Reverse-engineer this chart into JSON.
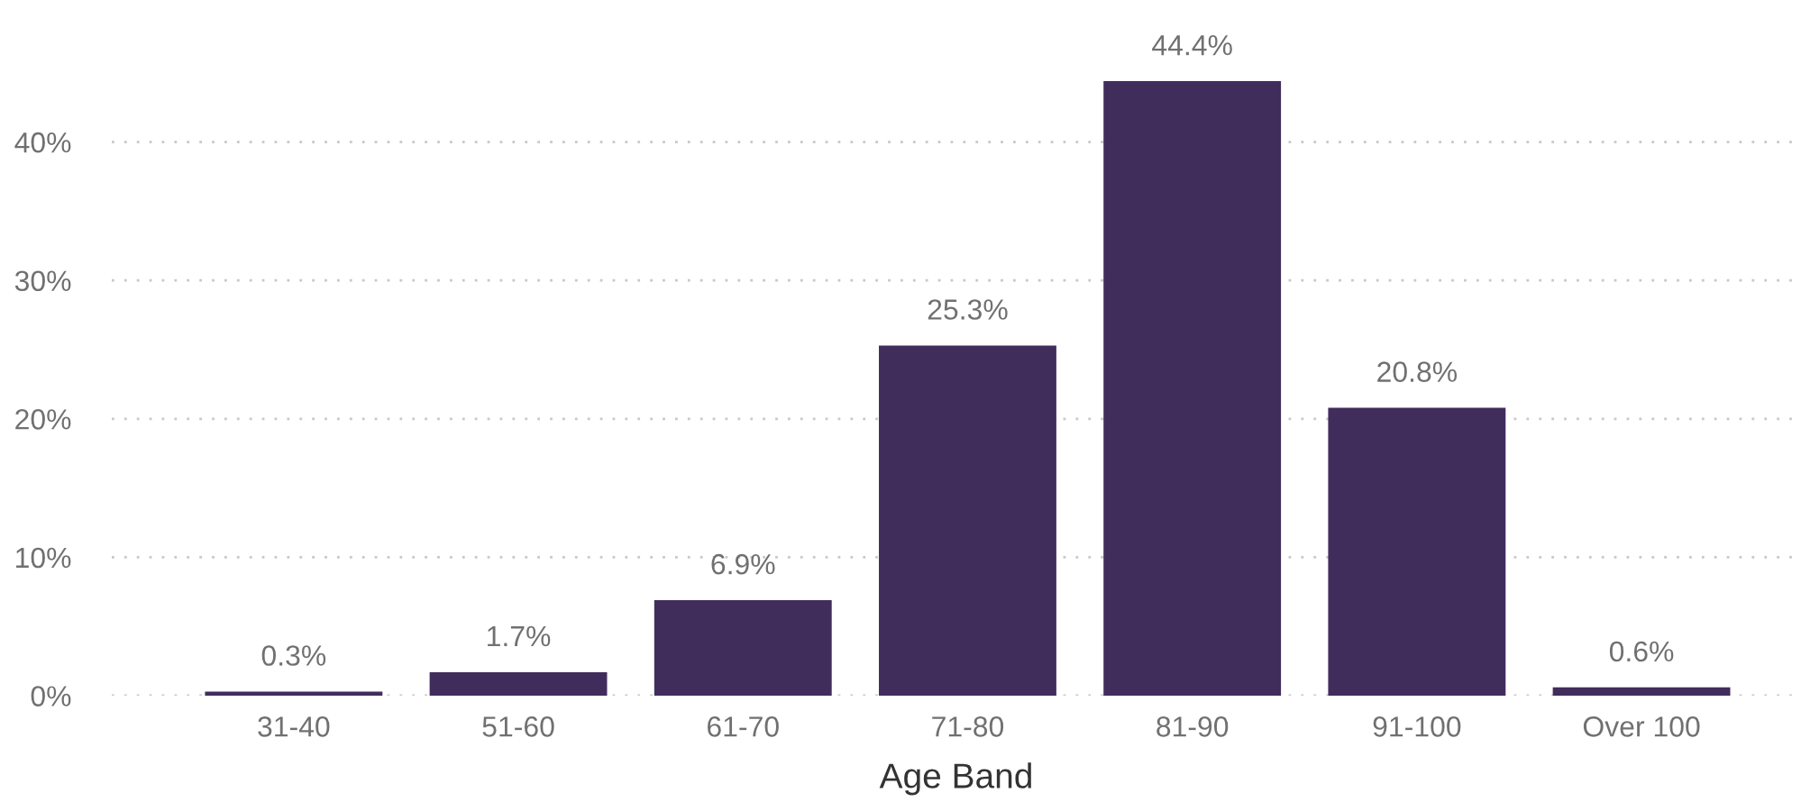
{
  "chart_data": {
    "type": "bar",
    "xlabel": "Age Band",
    "categories": [
      "31-40",
      "51-60",
      "61-70",
      "71-80",
      "81-90",
      "91-100",
      "Over 100"
    ],
    "values": [
      0.3,
      1.7,
      6.9,
      25.3,
      44.4,
      20.8,
      0.6
    ],
    "value_labels": [
      "0.3%",
      "1.7%",
      "6.9%",
      "25.3%",
      "44.4%",
      "20.8%",
      "0.6%"
    ],
    "color": "#412d5c",
    "ylim": [
      0,
      44.4
    ],
    "yticks": [
      {
        "value": 0,
        "label": "0%"
      },
      {
        "value": 10,
        "label": "10%"
      },
      {
        "value": 20,
        "label": "20%"
      },
      {
        "value": 30,
        "label": "30%"
      },
      {
        "value": 40,
        "label": "40%"
      }
    ],
    "grid": "y",
    "line_style": "dotted"
  }
}
